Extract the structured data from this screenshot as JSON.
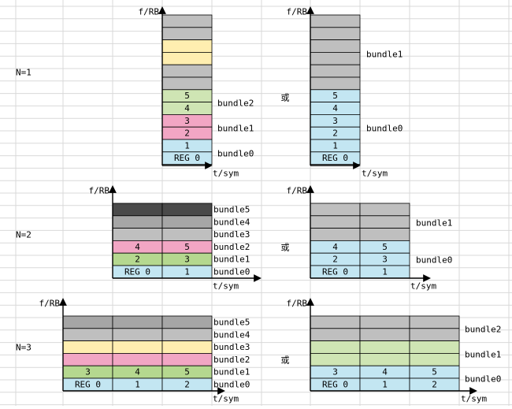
{
  "colors": {
    "grid": "#d9d9d9",
    "gray": "#bfbfbf",
    "gray_mid": "#a6a6a6",
    "gray_dark": "#4a4a4a",
    "yellow": "#ffeeb0",
    "pink": "#f2a6c4",
    "green": "#cfe5b4",
    "green_mid": "#b5d88f",
    "blue": "#c3e6f2"
  },
  "labels": {
    "f_axis": "f/RB",
    "t_axis": "t/sym",
    "or": "或"
  },
  "rows": [
    {
      "n_label": "N=1",
      "left": {
        "cells": [
          [
            "gray"
          ],
          [
            "gray"
          ],
          [
            "yellow"
          ],
          [
            "yellow"
          ],
          [
            "gray"
          ],
          [
            "gray"
          ],
          [
            "green",
            "5"
          ],
          [
            "green",
            "4"
          ],
          [
            "pink",
            "3"
          ],
          [
            "pink",
            "2"
          ],
          [
            "blue",
            "1"
          ],
          [
            "blue",
            "REG 0"
          ]
        ],
        "bundles": [
          "bundle2",
          "bundle1",
          "bundle0"
        ]
      },
      "right": {
        "cells": [
          [
            "gray"
          ],
          [
            "gray"
          ],
          [
            "gray"
          ],
          [
            "gray"
          ],
          [
            "gray"
          ],
          [
            "gray"
          ],
          [
            "blue",
            "5"
          ],
          [
            "blue",
            "4"
          ],
          [
            "blue",
            "3"
          ],
          [
            "blue",
            "2"
          ],
          [
            "blue",
            "1"
          ],
          [
            "blue",
            "REG 0"
          ]
        ],
        "bundles": [
          "bundle1",
          "bundle0"
        ]
      }
    },
    {
      "n_label": "N=2",
      "left": {
        "rows": [
          [
            "gray_dark",
            "",
            ""
          ],
          [
            "gray_mid",
            "",
            ""
          ],
          [
            "gray",
            "",
            ""
          ],
          [
            "pink",
            "4",
            "5"
          ],
          [
            "green_mid",
            "2",
            "3"
          ],
          [
            "blue",
            "REG 0",
            "1"
          ]
        ],
        "bundles": [
          "bundle5",
          "bundle4",
          "bundle3",
          "bundle2",
          "bundle1",
          "bundle0"
        ]
      },
      "right": {
        "rows": [
          [
            "gray",
            "",
            ""
          ],
          [
            "gray",
            "",
            ""
          ],
          [
            "gray",
            "",
            ""
          ],
          [
            "blue",
            "4",
            "5"
          ],
          [
            "blue",
            "2",
            "3"
          ],
          [
            "blue",
            "REG 0",
            "1"
          ]
        ],
        "bundles": [
          "bundle1",
          "bundle0"
        ]
      }
    },
    {
      "n_label": "N=3",
      "left": {
        "rows": [
          [
            "gray_mid",
            "",
            "",
            ""
          ],
          [
            "gray",
            "",
            "",
            ""
          ],
          [
            "yellow",
            "",
            "",
            ""
          ],
          [
            "pink",
            "",
            "",
            ""
          ],
          [
            "green_mid",
            "3",
            "4",
            "5"
          ],
          [
            "blue",
            "REG 0",
            "1",
            "2"
          ]
        ],
        "bundles": [
          "bundle5",
          "bundle4",
          "bundle3",
          "bundle2",
          "bundle1",
          "bundle0"
        ]
      },
      "right": {
        "rows": [
          [
            "gray",
            "",
            "",
            ""
          ],
          [
            "gray",
            "",
            "",
            ""
          ],
          [
            "green",
            "",
            "",
            ""
          ],
          [
            "green",
            "",
            "",
            ""
          ],
          [
            "blue",
            "3",
            "4",
            "5"
          ],
          [
            "blue",
            "REG 0",
            "1",
            "2"
          ]
        ],
        "bundles": [
          "bundle2",
          "bundle1",
          "bundle0"
        ]
      }
    }
  ]
}
